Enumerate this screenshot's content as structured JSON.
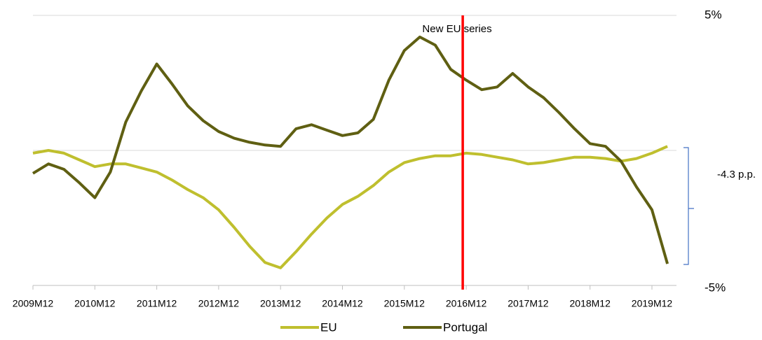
{
  "chart_data": {
    "type": "line",
    "categories": [
      "2009M12",
      null,
      null,
      null,
      "2010M12",
      null,
      null,
      null,
      "2011M12",
      null,
      null,
      null,
      "2012M12",
      null,
      null,
      null,
      "2013M12",
      null,
      null,
      null,
      "2014M12",
      null,
      null,
      null,
      "2015M12",
      null,
      null,
      null,
      "2016M12",
      null,
      null,
      null,
      "2017M12",
      null,
      null,
      null,
      "2018M12",
      null,
      null,
      null,
      "2019M12",
      null
    ],
    "series": [
      {
        "name": "EU",
        "color": "#bfbf2e",
        "values": [
          -0.1,
          0,
          -0.1,
          -0.35,
          -0.6,
          -0.5,
          -0.5,
          -0.65,
          -0.8,
          -1.1,
          -1.45,
          -1.75,
          -2.2,
          -2.85,
          -3.55,
          -4.15,
          -4.35,
          -3.75,
          -3.1,
          -2.5,
          -2.0,
          -1.7,
          -1.3,
          -0.8,
          -0.45,
          -0.3,
          -0.2,
          -0.2,
          -0.1,
          -0.15,
          -0.25,
          -0.35,
          -0.5,
          -0.45,
          -0.35,
          -0.25,
          -0.25,
          -0.3,
          -0.4,
          -0.3,
          -0.1,
          0.15
        ]
      },
      {
        "name": "Portugal",
        "color": "#5f5f12",
        "values": [
          -0.85,
          -0.5,
          -0.7,
          -1.2,
          -1.75,
          -0.8,
          1.05,
          2.2,
          3.2,
          2.45,
          1.65,
          1.1,
          0.7,
          0.45,
          0.3,
          0.2,
          0.15,
          0.8,
          0.95,
          0.75,
          0.55,
          0.65,
          1.15,
          2.6,
          3.7,
          4.2,
          3.9,
          3.0,
          2.6,
          2.25,
          2.35,
          2.85,
          2.35,
          1.95,
          1.4,
          0.8,
          0.25,
          0.15,
          -0.4,
          -1.35,
          -2.2,
          -4.2
        ]
      }
    ],
    "ylim": [
      -5,
      5
    ],
    "yticks": [
      {
        "value": 5,
        "label": "5%"
      },
      {
        "value": -5,
        "label": "-5%"
      }
    ],
    "ygrid": [
      5,
      0
    ],
    "vline": {
      "at": "2016M12",
      "color": "#ff0000",
      "label": "New EU series"
    },
    "gap_annotation": "-4.3 p.p.",
    "legend": "bottom"
  }
}
